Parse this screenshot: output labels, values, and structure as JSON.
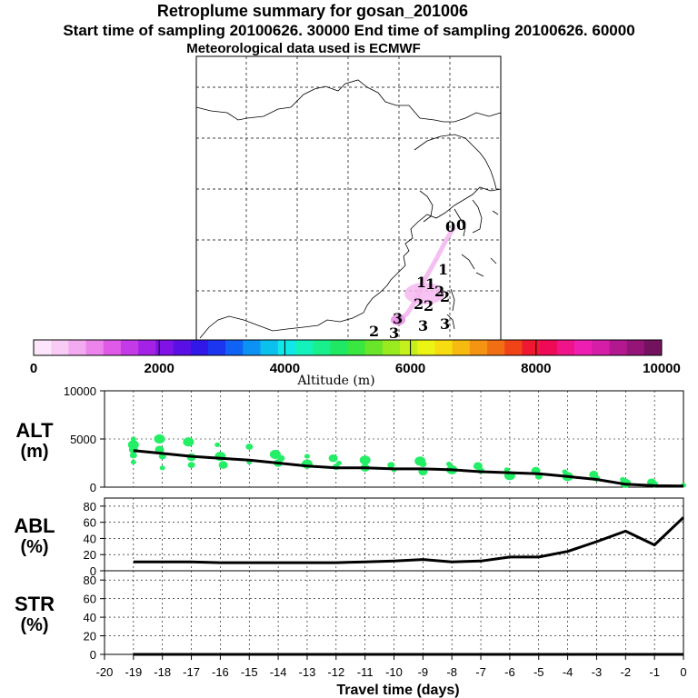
{
  "title": {
    "line1": "Retroplume summary for gosan_201006",
    "line2": "Start time of sampling 20100626. 30000     End time of sampling 20100626. 60000",
    "line3": "Meteorological data used is ECMWF"
  },
  "map": {
    "day_markers": [
      "0",
      "0",
      "1",
      "1",
      "1",
      "2",
      "2",
      "2",
      "2",
      "3",
      "3",
      "3",
      "2",
      "3"
    ]
  },
  "colorbar": {
    "ticks": [
      "0",
      "2000",
      "4000",
      "6000",
      "8000",
      "10000"
    ],
    "label": "Altitude (m)",
    "colors": [
      "#fde6fb",
      "#f9ccf5",
      "#f3aaf0",
      "#ec84ec",
      "#e05ae8",
      "#c43ae6",
      "#a422e6",
      "#8012e6",
      "#5a10e4",
      "#3218e8",
      "#1c36f0",
      "#1062f4",
      "#0c92f4",
      "#0cc0ee",
      "#12e6e8",
      "#14f2bc",
      "#18f08e",
      "#1ee864",
      "#3ae640",
      "#6ae62a",
      "#9aea20",
      "#c4f01c",
      "#ecf414",
      "#f6dc10",
      "#f6ba10",
      "#f49412",
      "#f26e14",
      "#f04418",
      "#f01830",
      "#ee0a56",
      "#f0148a",
      "#ee1eb2",
      "#d41ea8",
      "#b41890",
      "#941478",
      "#741260"
    ]
  },
  "chart_data": [
    {
      "type": "scatter",
      "name": "ALT",
      "label_main": "ALT",
      "label_unit": "(m)",
      "ylim": [
        0,
        10000
      ],
      "xlim": [
        -20,
        0
      ],
      "y_ticks": [
        "10000",
        "5000",
        "0"
      ],
      "mean_line": {
        "x": [
          -19,
          -18,
          -17,
          -16,
          -15,
          -14,
          -13,
          -12,
          -11,
          -10,
          -9,
          -8,
          -7,
          -6,
          -5,
          -4,
          -3,
          -2,
          -1,
          0
        ],
        "values": [
          3800,
          3500,
          3200,
          3000,
          2800,
          2500,
          2200,
          2000,
          2000,
          1900,
          1900,
          1800,
          1600,
          1500,
          1400,
          1100,
          800,
          300,
          150,
          120
        ]
      },
      "points": {
        "x": [
          -19,
          -19,
          -19,
          -19,
          -19,
          -18.1,
          -18.1,
          -18,
          -18,
          -17.1,
          -17,
          -17,
          -16.1,
          -16,
          -15.9,
          -15,
          -15,
          -14.1,
          -14,
          -13.9,
          -13,
          -13,
          -12.1,
          -12,
          -11.9,
          -11,
          -11,
          -10.1,
          -10,
          -9.1,
          -9,
          -9,
          -8.1,
          -8,
          -7.1,
          -7,
          -6.1,
          -6,
          -5.1,
          -5,
          -4.1,
          -4,
          -3.1,
          -3,
          -2.1,
          -2,
          -1.1,
          -1,
          0
        ],
        "y": [
          5000,
          4400,
          3900,
          3300,
          2600,
          5000,
          3900,
          3200,
          2000,
          4700,
          3100,
          2300,
          4400,
          3200,
          2300,
          4200,
          2600,
          3400,
          2500,
          3000,
          3200,
          2400,
          3000,
          2100,
          2500,
          2800,
          2000,
          2300,
          1800,
          2700,
          1600,
          2400,
          2400,
          1800,
          2200,
          1700,
          1800,
          1200,
          1700,
          1100,
          1600,
          1100,
          1300,
          900,
          800,
          400,
          500,
          300,
          200
        ]
      }
    },
    {
      "type": "line",
      "name": "ABL",
      "label_main": "ABL",
      "label_unit": "(%)",
      "ylim": [
        0,
        90
      ],
      "y_ticks": [
        "0",
        "20",
        "40",
        "60",
        "80"
      ],
      "x": [
        -19,
        -18,
        -17,
        -16,
        -15,
        -14,
        -13,
        -12,
        -11,
        -10,
        -9,
        -8,
        -7,
        -6,
        -5,
        -4,
        -3,
        -2,
        -1,
        0
      ],
      "values": [
        11,
        11,
        11,
        10,
        10,
        10,
        10,
        10,
        11,
        12,
        14,
        11,
        12,
        17,
        17,
        24,
        36,
        49,
        32,
        66
      ]
    },
    {
      "type": "line",
      "name": "STR",
      "label_main": "STR",
      "label_unit": "(%)",
      "ylim": [
        0,
        90
      ],
      "y_ticks": [
        "0",
        "20",
        "40",
        "60",
        "80"
      ],
      "x": [
        -19,
        -18,
        -17,
        -16,
        -15,
        -14,
        -13,
        -12,
        -11,
        -10,
        -9,
        -8,
        -7,
        -6,
        -5,
        -4,
        -3,
        -2,
        -1,
        0
      ],
      "values": [
        0,
        0,
        0,
        0,
        0,
        0,
        0,
        0,
        0,
        0,
        0,
        0,
        0,
        0,
        0,
        0,
        0,
        0,
        0,
        0
      ]
    }
  ],
  "x_axis": {
    "ticks": [
      "-20",
      "-19",
      "-18",
      "-17",
      "-16",
      "-15",
      "-14",
      "-13",
      "-12",
      "-11",
      "-10",
      "-9",
      "-8",
      "-7",
      "-6",
      "-5",
      "-4",
      "-3",
      "-2",
      "-1",
      "0"
    ],
    "label": "Travel time (days)"
  },
  "colors": {
    "points": "#22ee66",
    "line": "#000000",
    "grid": "#000000",
    "plume": "#f4b8f0"
  }
}
